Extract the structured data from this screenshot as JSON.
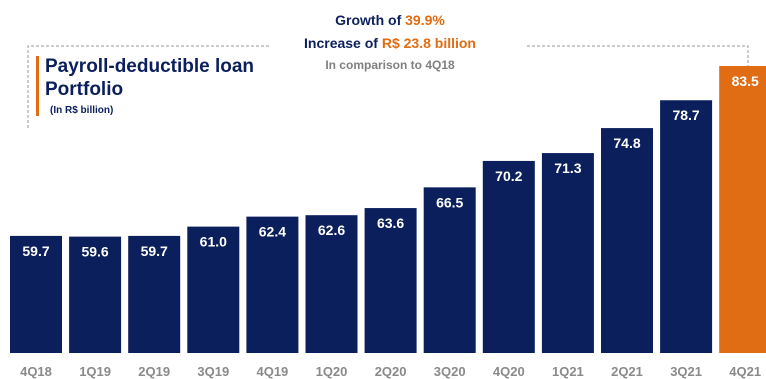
{
  "annotation": {
    "growth_prefix": "Growth of ",
    "growth_value": "39.9%",
    "increase_prefix": "Increase of ",
    "increase_value": "R$ 23.8 billion",
    "comparison": "In comparison to 4Q18"
  },
  "colors": {
    "bar": "#0b1f5c",
    "highlight": "#e06c13",
    "tick": "#8a8a8a"
  },
  "chart_data": {
    "type": "bar",
    "title": "Payroll-deductible loan Portfolio",
    "subtitle": "(In R$ billion)",
    "xlabel": "",
    "ylabel": "",
    "categories": [
      "4Q18",
      "1Q19",
      "2Q19",
      "3Q19",
      "4Q19",
      "1Q20",
      "2Q20",
      "3Q20",
      "4Q20",
      "1Q21",
      "2Q21",
      "3Q21",
      "4Q21"
    ],
    "values": [
      59.7,
      59.6,
      59.7,
      61.0,
      62.4,
      62.6,
      63.6,
      66.5,
      70.2,
      71.3,
      74.8,
      78.7,
      83.5
    ],
    "value_labels": [
      "59.7",
      "59.6",
      "59.7",
      "61.0",
      "62.4",
      "62.6",
      "63.6",
      "66.5",
      "70.2",
      "71.3",
      "74.8",
      "78.7",
      "83.5"
    ],
    "highlight_category": "4Q21",
    "grid": false,
    "legend": "none"
  }
}
